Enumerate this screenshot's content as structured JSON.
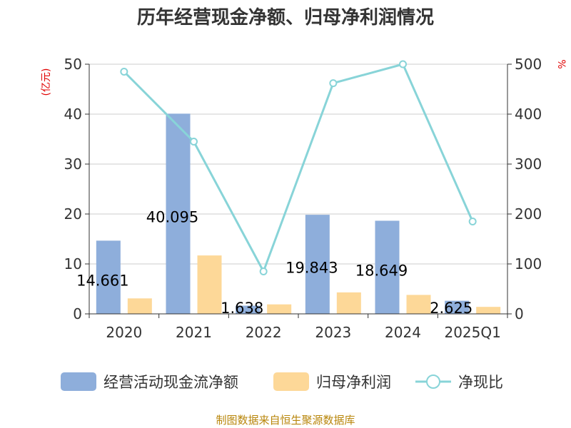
{
  "chart_data": {
    "type": "bar",
    "title": "历年经营现金净额、归母净利润情况",
    "categories": [
      "2020",
      "2021",
      "2022",
      "2023",
      "2024",
      "2025Q1"
    ],
    "series": [
      {
        "name": "经营活动现金流净额",
        "type": "bar",
        "axis": "left",
        "color": "#8eaedb",
        "values": [
          14.661,
          40.095,
          1.638,
          19.843,
          18.649,
          2.625
        ],
        "labels": [
          "14.661",
          "40.095",
          "1.638",
          "19.843",
          "18.649",
          "2.625"
        ]
      },
      {
        "name": "归母净利润",
        "type": "bar",
        "axis": "left",
        "color": "#fdd898",
        "values": [
          3.1,
          11.7,
          1.9,
          4.3,
          3.8,
          1.4
        ]
      },
      {
        "name": "净现比",
        "type": "line",
        "axis": "right",
        "color": "#88d4d8",
        "values": [
          485,
          345,
          85,
          462,
          500,
          185
        ]
      }
    ],
    "left_axis": {
      "unit": "(亿元)",
      "ylim": [
        0,
        50
      ],
      "ticks": [
        "0",
        "10",
        "20",
        "30",
        "40",
        "50"
      ]
    },
    "right_axis": {
      "unit": "%",
      "ylim": [
        0,
        500
      ],
      "ticks": [
        "0",
        "100",
        "200",
        "300",
        "400",
        "500"
      ]
    },
    "grid": true,
    "legend_position": "bottom"
  },
  "source": "制图数据来自恒生聚源数据库"
}
